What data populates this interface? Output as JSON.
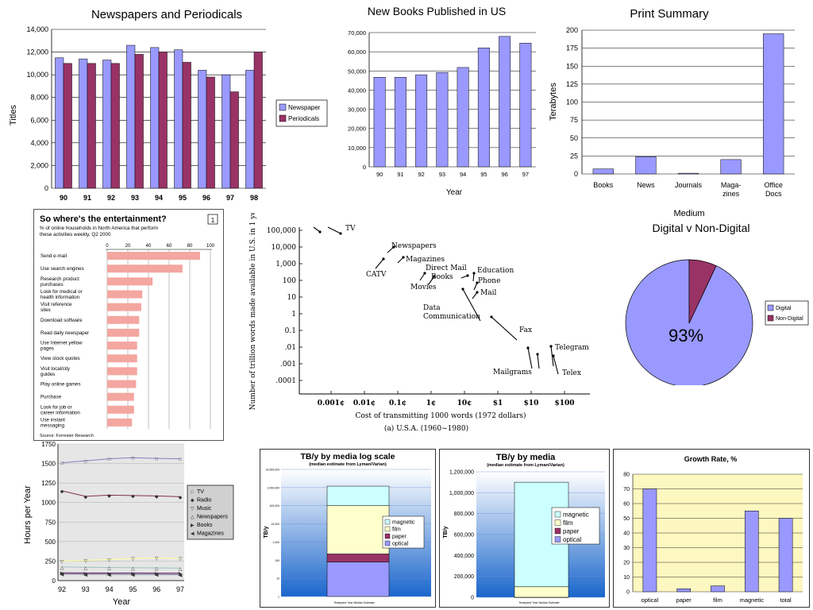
{
  "colors": {
    "blue": "#9999ff",
    "maroon": "#993366",
    "salmon": "#f4a6a0",
    "cyan": "#ccffff",
    "yellow": "#ffffcc",
    "paleyellow": "#fdf7c0",
    "gray": "#e6e6e6",
    "dark": "#000000"
  },
  "chart_data": [
    {
      "type": "bar",
      "title": "Newspapers and Periodicals",
      "ylabel": "Titles",
      "categories": [
        "90",
        "91",
        "92",
        "93",
        "94",
        "95",
        "96",
        "97",
        "98"
      ],
      "ylim": [
        0,
        14000
      ],
      "yticks": [
        "0",
        "2,000",
        "4,000",
        "6,000",
        "8,000",
        "10,000",
        "12,000",
        "14,000"
      ],
      "series": [
        {
          "name": "Newspaper",
          "values": [
            11500,
            11400,
            11300,
            12600,
            12400,
            12200,
            10400,
            10000,
            10400
          ]
        },
        {
          "name": "Periodicals",
          "values": [
            11000,
            11000,
            11000,
            11800,
            12000,
            11100,
            9800,
            8500,
            12000
          ]
        }
      ],
      "legend": "right"
    },
    {
      "type": "bar",
      "title": "New Books Published in US",
      "xlabel": "Year",
      "categories": [
        "90",
        "91",
        "92",
        "93",
        "94",
        "95",
        "96",
        "97"
      ],
      "ylim": [
        0,
        70000
      ],
      "yticks": [
        "0",
        "10,000",
        "20,000",
        "30,000",
        "40,000",
        "50,000",
        "60,000",
        "70,000"
      ],
      "values": [
        46700,
        46700,
        48000,
        49200,
        51800,
        62000,
        68000,
        64500
      ]
    },
    {
      "type": "bar",
      "title": "Print Summary",
      "xlabel": "Medium",
      "ylabel": "Terabytes",
      "categories": [
        "Books",
        "News",
        "Journals",
        "Maga- zines",
        "Office Docs"
      ],
      "ylim": [
        0,
        200
      ],
      "yticks": [
        "0",
        "25",
        "50",
        "75",
        "100",
        "125",
        "150",
        "175",
        "200"
      ],
      "values": [
        7,
        24,
        1,
        20,
        195
      ]
    },
    {
      "type": "bar",
      "title": "So where's the entertainment?",
      "subtitle": "% of online households in North America that perform these activities weekly, Q2 2000",
      "badge": "1",
      "source": "Source: Forrester Research",
      "xlim": [
        0,
        100
      ],
      "xticks": [
        "0",
        "20",
        "40",
        "60",
        "80",
        "100"
      ],
      "categories": [
        "Send e-mail",
        "Use search engines",
        "Research product purchases",
        "Look for medical or health information",
        "Visit reference sites",
        "Download software",
        "Read daily newspaper",
        "Use Internet yellow pages",
        "View stock quotes",
        "Visit local/city guides",
        "Play online games",
        "Purchase",
        "Look for job or career information",
        "Use instant messaging"
      ],
      "values": [
        90,
        73,
        44,
        34,
        33,
        31,
        31,
        29,
        29,
        29,
        28,
        26,
        26,
        24
      ]
    },
    {
      "type": "scatter",
      "xlabel": "Cost of transmitting 1000 words (1972 dollars)",
      "ylabel": "Number of trillion words made available in U.S. in 1 year",
      "caption": "(a) U.S.A. (1960~1980)",
      "xticks": [
        "0.001¢",
        "0.01¢",
        "0.1¢",
        "1¢",
        "10¢",
        "$1",
        "$10",
        "$100"
      ],
      "yticks": [
        "100,000",
        "10,000",
        "1,000",
        "100",
        "10",
        "1",
        "0.1",
        ".01",
        ".001",
        ".0001"
      ],
      "labels": [
        "TV",
        "Newspapers",
        "Magazines",
        "CATV",
        "Direct Mail",
        "Books",
        "Movies",
        "Education",
        "Phone",
        "Mail",
        "Data Communication",
        "Fax",
        "Telegram",
        "Mailgrams",
        "Telex"
      ]
    },
    {
      "type": "pie",
      "title": "Digital v Non-Digital",
      "series": [
        {
          "name": "Digital",
          "values": [
            93
          ]
        },
        {
          "name": "Non-Digital",
          "values": [
            7
          ]
        }
      ],
      "label": "93%",
      "legend": "right"
    },
    {
      "type": "line",
      "xlabel": "Year",
      "ylabel": "Hours per Year",
      "x": [
        "92",
        "93",
        "94",
        "95",
        "96",
        "97"
      ],
      "ylim": [
        0,
        1750
      ],
      "yticks": [
        "0",
        "250",
        "500",
        "750",
        "1000",
        "1250",
        "1500",
        "1750"
      ],
      "series": [
        {
          "name": "TV",
          "values": [
            1510,
            1535,
            1560,
            1575,
            1565,
            1560
          ]
        },
        {
          "name": "Radio",
          "values": [
            1150,
            1080,
            1095,
            1090,
            1085,
            1075
          ]
        },
        {
          "name": "Music",
          "values": [
            250,
            260,
            270,
            285,
            290,
            285
          ]
        },
        {
          "name": "Newspapers",
          "values": [
            175,
            170,
            168,
            165,
            163,
            160
          ]
        },
        {
          "name": "Books",
          "values": [
            100,
            98,
            97,
            98,
            96,
            95
          ]
        },
        {
          "name": "Magazines",
          "values": [
            85,
            83,
            82,
            80,
            80,
            78
          ]
        }
      ]
    },
    {
      "type": "bar",
      "title": "TB/y by media log scale",
      "subtitle": "(median estimate from Lyman/Varian)",
      "ylabel": "TB/y",
      "footer": "Terabytes/ Year Median Estimate",
      "series": [
        {
          "name": "magnetic",
          "values": [
            1100000
          ]
        },
        {
          "name": "film",
          "values": [
            100000
          ]
        },
        {
          "name": "paper",
          "values": [
            140
          ]
        },
        {
          "name": "optical",
          "values": [
            80
          ]
        }
      ]
    },
    {
      "type": "bar",
      "title": "TB/y by media",
      "subtitle": "(median estimate from Lyman/Varian)",
      "ylabel": "TB/y",
      "footer": "Terabytes/ Year Median Estimate",
      "ylim": [
        0,
        1200000
      ],
      "yticks": [
        "0",
        "200,000",
        "400,000",
        "600,000",
        "800,000",
        "1,000,000",
        "1,200,000"
      ],
      "series": [
        {
          "name": "magnetic",
          "values": [
            1000000
          ]
        },
        {
          "name": "film",
          "values": [
            100000
          ]
        },
        {
          "name": "paper",
          "values": [
            200
          ]
        },
        {
          "name": "optical",
          "values": [
            100
          ]
        }
      ]
    },
    {
      "type": "bar",
      "title": "Growth Rate, %",
      "categories": [
        "optical",
        "paper",
        "film",
        "magnetic",
        "total"
      ],
      "ylim": [
        0,
        80
      ],
      "yticks": [
        "0",
        "10",
        "20",
        "30",
        "40",
        "50",
        "60",
        "70",
        "80"
      ],
      "values": [
        70,
        2,
        4,
        55,
        50
      ]
    }
  ]
}
